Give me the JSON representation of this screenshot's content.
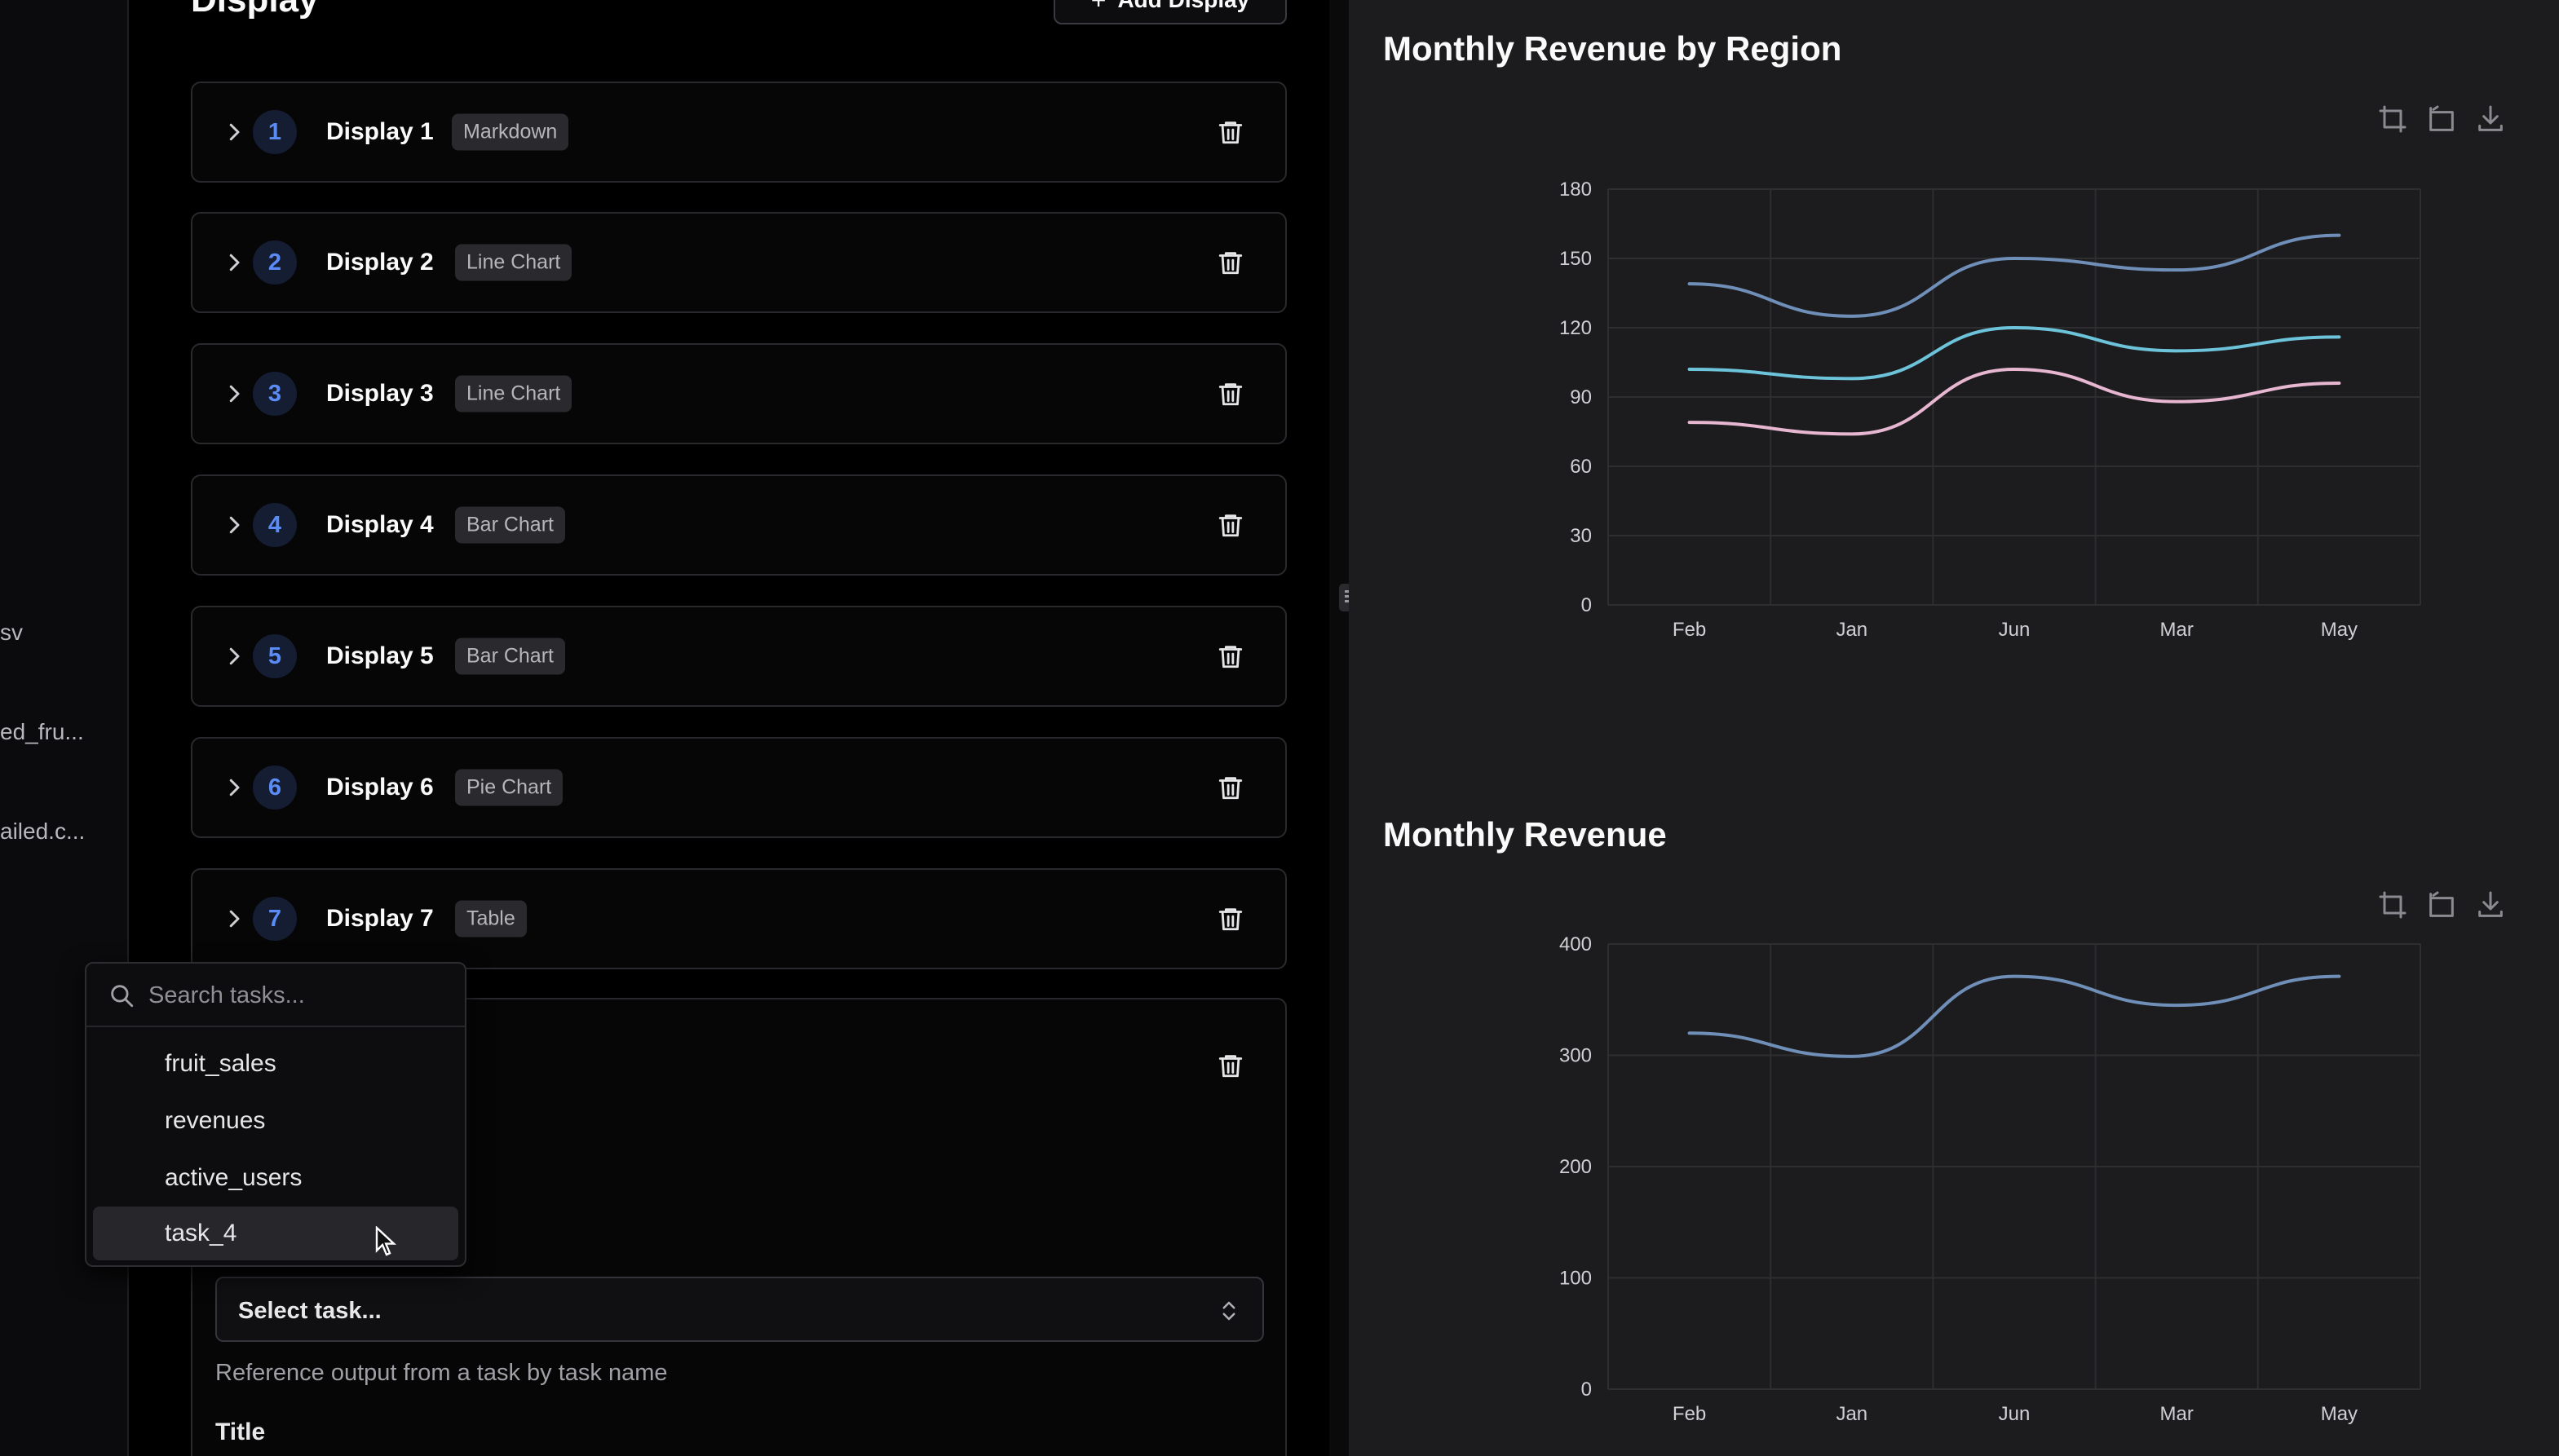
{
  "file_sidebar": {
    "items": [
      "sv",
      "ed_fru...",
      "ailed.c..."
    ]
  },
  "editor": {
    "title": "Display",
    "add_button_label": "Add Display",
    "displays": [
      {
        "number": "1",
        "name": "Display 1",
        "type": "Markdown"
      },
      {
        "number": "2",
        "name": "Display 2",
        "type": "Line Chart"
      },
      {
        "number": "3",
        "name": "Display 3",
        "type": "Line Chart"
      },
      {
        "number": "4",
        "name": "Display 4",
        "type": "Bar Chart"
      },
      {
        "number": "5",
        "name": "Display 5",
        "type": "Bar Chart"
      },
      {
        "number": "6",
        "name": "Display 6",
        "type": "Pie Chart"
      },
      {
        "number": "7",
        "name": "Display 7",
        "type": "Table"
      }
    ],
    "task_select": {
      "label": "Select task...",
      "helper": "Reference output from a task by task name",
      "title_label": "Title"
    },
    "task_dropdown": {
      "search_placeholder": "Search tasks...",
      "options": [
        "fruit_sales",
        "revenues",
        "active_users",
        "task_4"
      ],
      "hovered_index": 3
    }
  },
  "colors": {
    "badge_text": "#5b8cf5",
    "series_dark_blue": "#6f8fb8",
    "series_cyan": "#6cc3da",
    "series_pink": "#e7b6d1",
    "grid": "#2e2e31"
  },
  "chart_data": [
    {
      "type": "line",
      "title": "Monthly Revenue by Region",
      "categories": [
        "Feb",
        "Jan",
        "Jun",
        "Mar",
        "May"
      ],
      "ylim": [
        0,
        180
      ],
      "yticks": [
        0,
        30,
        60,
        90,
        120,
        150,
        180
      ],
      "grid": true,
      "smooth": true,
      "series": [
        {
          "values": [
            139,
            125,
            150,
            145,
            160
          ],
          "color": "#6f8fb8"
        },
        {
          "values": [
            102,
            98,
            120,
            110,
            116
          ],
          "color": "#6cc3da"
        },
        {
          "values": [
            79,
            74,
            102,
            88,
            96
          ],
          "color": "#e7b6d1"
        }
      ]
    },
    {
      "type": "line",
      "title": "Monthly Revenue",
      "categories": [
        "Feb",
        "Jan",
        "Jun",
        "Mar",
        "May"
      ],
      "ylim": [
        0,
        400
      ],
      "yticks": [
        0,
        100,
        200,
        300,
        400
      ],
      "grid": true,
      "smooth": true,
      "series": [
        {
          "values": [
            320,
            299,
            371,
            345,
            371
          ],
          "color": "#6f8fb8"
        }
      ]
    }
  ]
}
